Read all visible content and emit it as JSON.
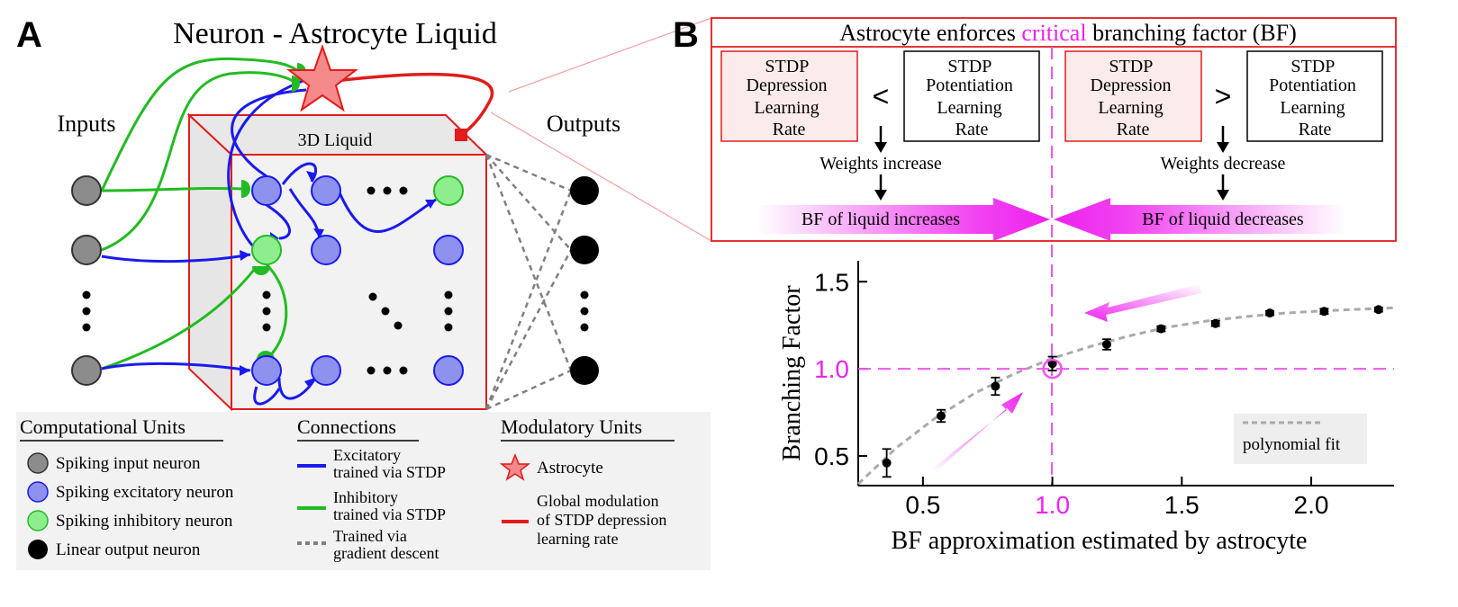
{
  "panel_a": {
    "letter": "A",
    "title": "Neuron - Astrocyte Liquid",
    "inputs_label": "Inputs",
    "outputs_label": "Outputs",
    "liquid_label": "3D Liquid",
    "legend": {
      "computational": {
        "heading": "Computational Units",
        "items": [
          {
            "label": "Spiking input neuron",
            "color": "#8c8c8c"
          },
          {
            "label": "Spiking excitatory neuron",
            "color": "#8e92ee"
          },
          {
            "label": "Spiking inhibitory neuron",
            "color": "#8eee8e"
          },
          {
            "label": "Linear output neuron",
            "color": "#000000"
          }
        ]
      },
      "connections": {
        "heading": "Connections",
        "items": [
          {
            "line1": "Excitatory",
            "line2": "trained via STDP",
            "color": "#1a1aee"
          },
          {
            "line1": "Inhibitory",
            "line2": "trained via STDP",
            "color": "#22bb22"
          },
          {
            "line1": "Trained via",
            "line2": "gradient descent",
            "color": "#808080"
          }
        ]
      },
      "modulatory": {
        "heading": "Modulatory Units",
        "astrocyte": "Astrocyte",
        "global_line1": "Global modulation",
        "global_line2": "of STDP depression",
        "global_line3": "learning rate"
      }
    }
  },
  "panel_b": {
    "letter": "B",
    "header_pre": "Astrocyte enforces ",
    "header_highlight": "critical",
    "header_post": " branching factor (BF)",
    "left": {
      "box1": [
        "STDP",
        "Depression",
        "Learning",
        "Rate"
      ],
      "op": "<",
      "box2": [
        "STDP",
        "Potentiation",
        "Learning",
        "Rate"
      ],
      "weights": "Weights increase",
      "arrow_label": "BF of liquid increases"
    },
    "right": {
      "box1": [
        "STDP",
        "Depression",
        "Learning",
        "Rate"
      ],
      "op": ">",
      "box2": [
        "STDP",
        "Potentiation",
        "Learning",
        "Rate"
      ],
      "weights": "Weights decrease",
      "arrow_label": "BF of liquid decreases"
    },
    "legend_label": "polynomial fit"
  },
  "colors": {
    "magenta": "#ee22ee",
    "red": "#e21b1b",
    "excitatory": "#1a1aee",
    "inhibitory": "#22bb22"
  },
  "chart_data": {
    "type": "scatter",
    "xlabel": "BF approximation estimated by astrocyte",
    "ylabel": "Branching Factor",
    "xlim": [
      0.25,
      2.32
    ],
    "ylim": [
      0.33,
      1.62
    ],
    "xticks": [
      0.5,
      1.0,
      1.5,
      2.0
    ],
    "yticks": [
      0.5,
      1.0,
      1.5
    ],
    "xtick_labels": [
      "0.5",
      "1.0",
      "1.5",
      "2.0"
    ],
    "ytick_labels": [
      "0.5",
      "1.0",
      "1.5"
    ],
    "highlight_x": 1.0,
    "highlight_y": 1.0,
    "points": [
      {
        "x": 0.36,
        "y": 0.46,
        "err": 0.08
      },
      {
        "x": 0.57,
        "y": 0.73,
        "err": 0.035
      },
      {
        "x": 0.78,
        "y": 0.9,
        "err": 0.05
      },
      {
        "x": 1.0,
        "y": 1.03,
        "err": 0.04
      },
      {
        "x": 1.21,
        "y": 1.14,
        "err": 0.03
      },
      {
        "x": 1.42,
        "y": 1.23,
        "err": 0.015
      },
      {
        "x": 1.63,
        "y": 1.26,
        "err": 0.015
      },
      {
        "x": 1.84,
        "y": 1.32,
        "err": 0.012
      },
      {
        "x": 2.05,
        "y": 1.33,
        "err": 0.015
      },
      {
        "x": 2.26,
        "y": 1.34,
        "err": 0.012
      }
    ],
    "fit": [
      {
        "x": 0.25,
        "y": 0.34
      },
      {
        "x": 0.4,
        "y": 0.55
      },
      {
        "x": 0.55,
        "y": 0.72
      },
      {
        "x": 0.7,
        "y": 0.86
      },
      {
        "x": 0.85,
        "y": 0.97
      },
      {
        "x": 1.0,
        "y": 1.06
      },
      {
        "x": 1.15,
        "y": 1.13
      },
      {
        "x": 1.3,
        "y": 1.19
      },
      {
        "x": 1.45,
        "y": 1.24
      },
      {
        "x": 1.6,
        "y": 1.275
      },
      {
        "x": 1.75,
        "y": 1.3
      },
      {
        "x": 1.9,
        "y": 1.32
      },
      {
        "x": 2.05,
        "y": 1.333
      },
      {
        "x": 2.2,
        "y": 1.343
      },
      {
        "x": 2.32,
        "y": 1.35
      }
    ]
  }
}
